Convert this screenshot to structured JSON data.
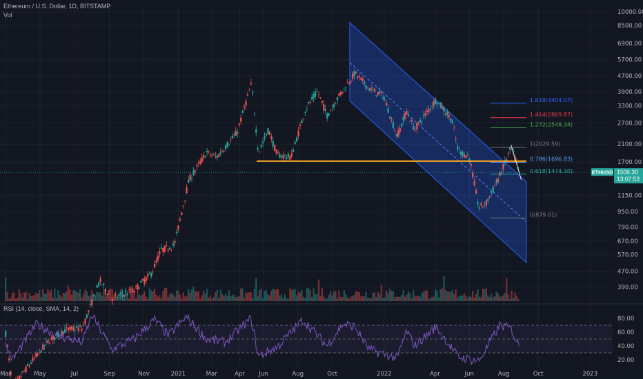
{
  "header": {
    "symbol_line": "Ethereum / U.S. Dollar, 1D, BITSTAMP",
    "vol_label": "Vol",
    "rsi_label": "RSI (14, close, SMA, 14, 2)"
  },
  "price_tag": {
    "symbol": "ETHUSD",
    "price": "1506.30",
    "countdown": "13:07:53"
  },
  "colors": {
    "background": "#131722",
    "up": "#26a69a",
    "down": "#ef5350",
    "channel": "#2962ff",
    "support": "#f5a623",
    "rsi": "#7e57c2"
  },
  "chart_data": {
    "type": "candlestick",
    "title": "Ethereum / U.S. Dollar, 1D, BITSTAMP",
    "y_scale": "log",
    "y_tick_labels": [
      "10000.00",
      "8500.00",
      "6900.00",
      "5700.00",
      "4700.00",
      "3900.00",
      "3300.00",
      "2700.00",
      "2100.00",
      "1700.00",
      "1150.00",
      "950.00",
      "790.00",
      "670.00",
      "570.00",
      "470.00",
      "390.00"
    ],
    "y_ticks": [
      10000,
      8500,
      6900,
      5700,
      4700,
      3900,
      3300,
      2700,
      2100,
      1700,
      1150,
      950,
      790,
      670,
      570,
      470,
      390
    ],
    "x_tick_labels": [
      "Mar",
      "May",
      "Jul",
      "Sep",
      "Nov",
      "2021",
      "Mar",
      "Apr",
      "Jun",
      "Aug",
      "Oct",
      "2022",
      "Apr",
      "Jun",
      "Aug",
      "Oct",
      "2023"
    ],
    "x_tick_dates": [
      "2020-03-01",
      "2020-05-01",
      "2020-07-01",
      "2020-09-01",
      "2020-11-01",
      "2021-01-01",
      "2021-03-01",
      "2021-04-20",
      "2021-06-01",
      "2021-08-01",
      "2021-10-01",
      "2022-01-01",
      "2022-04-01",
      "2022-06-01",
      "2022-08-01",
      "2022-10-01",
      "2023-01-01"
    ],
    "last_price": 1506.3,
    "price_path": [
      [
        "2020-03-01",
        225
      ],
      [
        "2020-03-13",
        120
      ],
      [
        "2020-04-15",
        160
      ],
      [
        "2020-05-15",
        205
      ],
      [
        "2020-06-15",
        235
      ],
      [
        "2020-07-15",
        240
      ],
      [
        "2020-08-15",
        420
      ],
      [
        "2020-09-05",
        340
      ],
      [
        "2020-10-15",
        375
      ],
      [
        "2020-11-15",
        460
      ],
      [
        "2020-12-01",
        600
      ],
      [
        "2020-12-25",
        640
      ],
      [
        "2021-01-20",
        1380
      ],
      [
        "2021-02-20",
        1900
      ],
      [
        "2021-03-10",
        1800
      ],
      [
        "2021-04-15",
        2400
      ],
      [
        "2021-05-11",
        4300
      ],
      [
        "2021-05-23",
        1900
      ],
      [
        "2021-06-10",
        2500
      ],
      [
        "2021-06-25",
        1850
      ],
      [
        "2021-07-20",
        1800
      ],
      [
        "2021-08-15",
        3200
      ],
      [
        "2021-09-05",
        3900
      ],
      [
        "2021-09-22",
        2950
      ],
      [
        "2021-10-10",
        3600
      ],
      [
        "2021-11-10",
        4850
      ],
      [
        "2021-12-05",
        4050
      ],
      [
        "2021-12-31",
        3700
      ],
      [
        "2022-01-24",
        2300
      ],
      [
        "2022-02-10",
        3100
      ],
      [
        "2022-02-24",
        2500
      ],
      [
        "2022-04-03",
        3550
      ],
      [
        "2022-05-01",
        2800
      ],
      [
        "2022-05-12",
        1950
      ],
      [
        "2022-06-01",
        1800
      ],
      [
        "2022-06-18",
        990
      ],
      [
        "2022-07-01",
        1050
      ],
      [
        "2022-07-25",
        1450
      ],
      [
        "2022-08-14",
        2020
      ],
      [
        "2022-08-29",
        1500
      ]
    ],
    "rsi_series": [
      [
        "2020-03-01",
        40
      ],
      [
        "2020-03-13",
        20
      ],
      [
        "2020-04-25",
        72
      ],
      [
        "2020-06-01",
        55
      ],
      [
        "2020-07-15",
        45
      ],
      [
        "2020-08-01",
        85
      ],
      [
        "2020-09-05",
        35
      ],
      [
        "2020-10-15",
        50
      ],
      [
        "2020-11-20",
        78
      ],
      [
        "2020-12-15",
        55
      ],
      [
        "2021-01-15",
        82
      ],
      [
        "2021-02-20",
        50
      ],
      [
        "2021-03-25",
        45
      ],
      [
        "2021-05-10",
        80
      ],
      [
        "2021-05-23",
        25
      ],
      [
        "2021-06-25",
        38
      ],
      [
        "2021-08-10",
        78
      ],
      [
        "2021-09-22",
        40
      ],
      [
        "2021-10-20",
        72
      ],
      [
        "2021-11-10",
        68
      ],
      [
        "2021-12-05",
        35
      ],
      [
        "2022-01-24",
        22
      ],
      [
        "2022-02-10",
        62
      ],
      [
        "2022-02-24",
        40
      ],
      [
        "2022-04-03",
        68
      ],
      [
        "2022-05-12",
        24
      ],
      [
        "2022-06-18",
        18
      ],
      [
        "2022-07-25",
        70
      ],
      [
        "2022-08-14",
        65
      ],
      [
        "2022-08-29",
        38
      ]
    ],
    "rsi_tick_labels": [
      "80.00",
      "60.00",
      "40.00",
      "20.00"
    ],
    "rsi_ticks": [
      80,
      60,
      40,
      20
    ],
    "rsi_bands": [
      70,
      50,
      30
    ],
    "regression_channel": {
      "start_date": "2021-11-01",
      "end_date": "2022-09-10",
      "upper": [
        8800,
        1350
      ],
      "mid": [
        5500,
        840
      ],
      "lower": [
        3500,
        520
      ]
    },
    "support_line": {
      "value": 1720,
      "start_date": "2021-05-20",
      "end_date": "2022-09-10"
    },
    "fibonacci": {
      "start_date": "2022-07-08",
      "end_date": "2022-09-10",
      "levels": [
        {
          "label": "1.618(3404.07)",
          "value": 3404.07,
          "color": "#2962ff"
        },
        {
          "label": "1.414(2869.87)",
          "value": 2869.87,
          "color": "#f23645"
        },
        {
          "label": "1.272(2548.34)",
          "value": 2548.34,
          "color": "#4caf50"
        },
        {
          "label": "1(2029.59)",
          "value": 2029.59,
          "color": "#787b86"
        },
        {
          "label": "0.786(1696.83)",
          "value": 1696.83,
          "color": "#5b9cf6"
        },
        {
          "label": "0.618(1474.30)",
          "value": 1474.3,
          "color": "#26a69a"
        },
        {
          "label": "0(879.01)",
          "value": 879.01,
          "color": "#787b86"
        }
      ]
    }
  }
}
